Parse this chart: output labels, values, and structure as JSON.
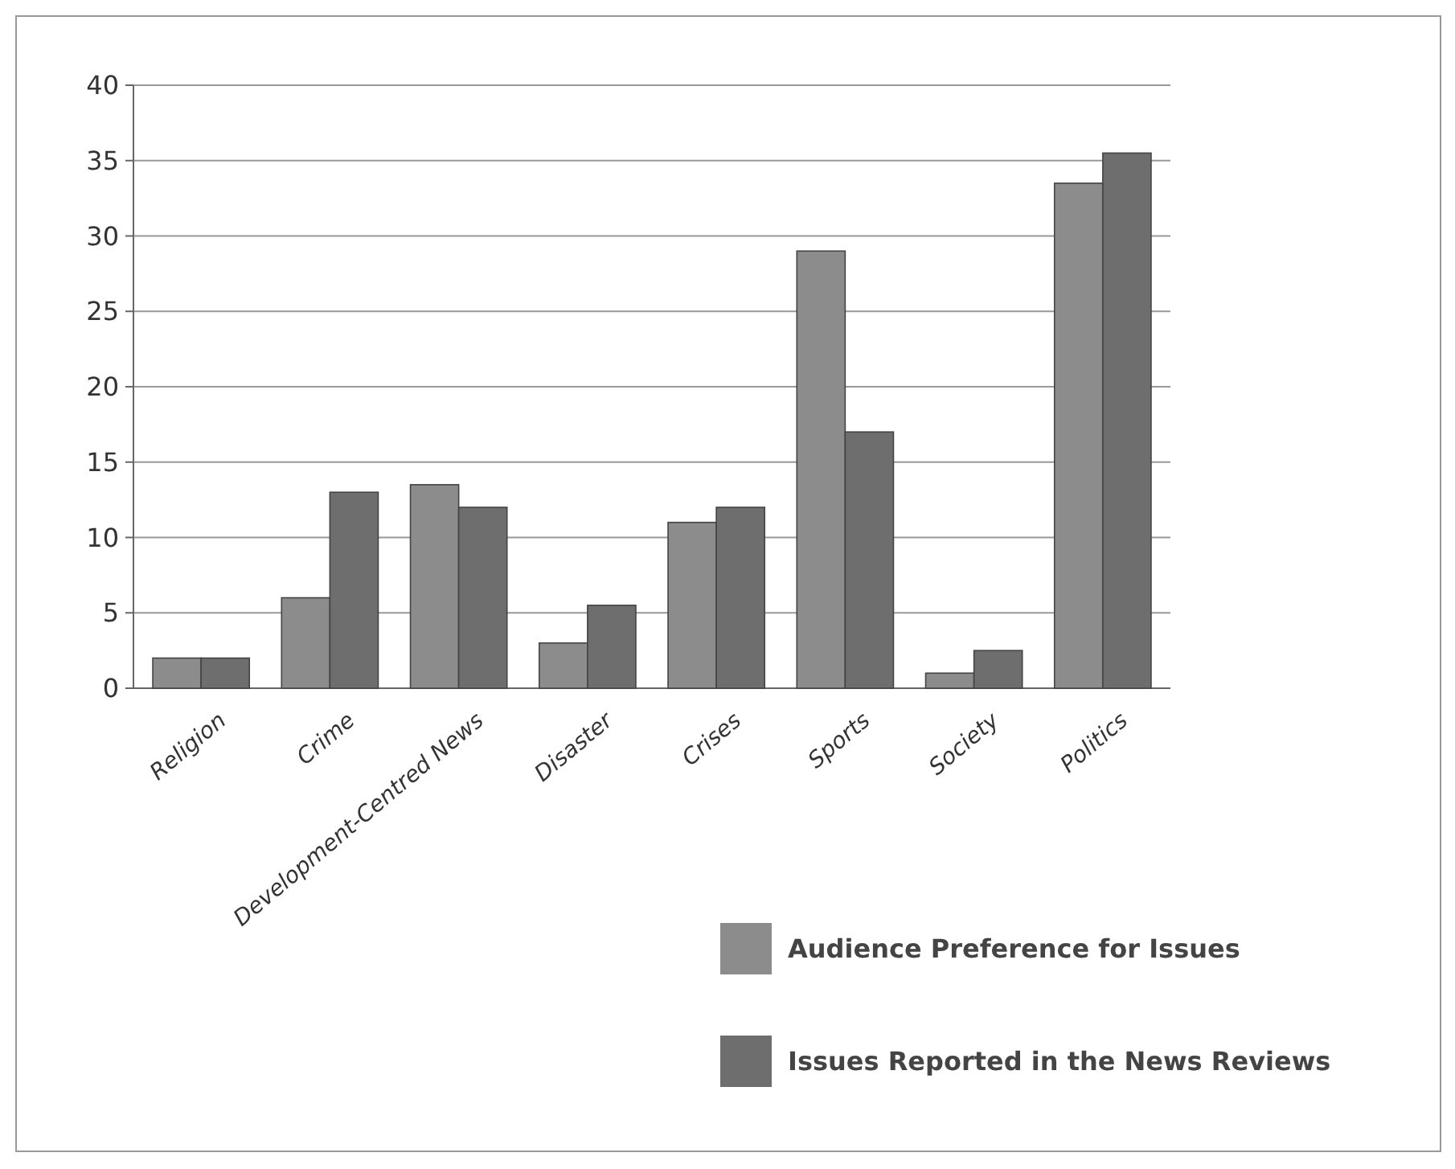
{
  "chart_data": {
    "type": "bar",
    "categories": [
      "Religion",
      "Crime",
      "Development-Centred News",
      "Disaster",
      "Crises",
      "Sports",
      "Society",
      "Politics"
    ],
    "series": [
      {
        "name": "Audience Preference for Issues",
        "color": "#8c8c8c",
        "values": [
          2,
          6,
          13.5,
          3,
          11,
          29,
          1,
          33.5
        ]
      },
      {
        "name": "Issues Reported in the News Reviews",
        "color": "#6e6e6e",
        "values": [
          2,
          13,
          12,
          5.5,
          12,
          17,
          2.5,
          35.5
        ]
      }
    ],
    "ylim": [
      0,
      40
    ],
    "yticks": [
      0,
      5,
      10,
      15,
      20,
      25,
      30,
      35,
      40
    ],
    "grid": "y",
    "legend": "bottom right"
  }
}
